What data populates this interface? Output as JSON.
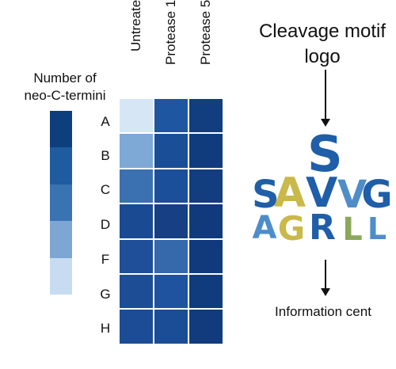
{
  "legend": {
    "title_line1": "Number of",
    "title_line2": "neo-C-termini",
    "colors": [
      "#0c3f7b",
      "#1e5b9f",
      "#3a73b2",
      "#7ea6d3",
      "#c7dcf0"
    ]
  },
  "heatmap": {
    "columns": [
      "Untreate",
      "Protease 1",
      "Protease 5"
    ],
    "rows": [
      "A",
      "B",
      "C",
      "D",
      "F",
      "G",
      "H"
    ],
    "colors": [
      [
        "#d6e6f5",
        "#1f56a2",
        "#113e7f"
      ],
      [
        "#7ea8d6",
        "#1a4f98",
        "#103c7d"
      ],
      [
        "#3b70b1",
        "#1c4f99",
        "#123d7e"
      ],
      [
        "#1a4a92",
        "#173f84",
        "#103a7c"
      ],
      [
        "#1e4f98",
        "#3669ac",
        "#103a7c"
      ],
      [
        "#1d4d95",
        "#1f53a0",
        "#103b7d"
      ],
      [
        "#1c4c95",
        "#1b4d96",
        "#113b7d"
      ]
    ]
  },
  "logo": {
    "title_line1": "Cleavage motif",
    "title_line2": "logo",
    "letters": [
      {
        "char": "S",
        "color": "#1f5ea8"
      },
      {
        "char": "S",
        "color": "#1f5ea8"
      },
      {
        "char": "A",
        "color": "#c9b94a"
      },
      {
        "char": "V",
        "color": "#1f5ea8"
      },
      {
        "char": "V",
        "color": "#4f8dc9"
      },
      {
        "char": "G",
        "color": "#1f5ea8"
      },
      {
        "char": "A",
        "color": "#4f8dc9"
      },
      {
        "char": "G",
        "color": "#c9b94a"
      },
      {
        "char": "R",
        "color": "#1f5ea8"
      },
      {
        "char": "L",
        "color": "#8aa85a"
      },
      {
        "char": "L",
        "color": "#4f8dc9"
      }
    ],
    "info_label": "Information cent"
  }
}
